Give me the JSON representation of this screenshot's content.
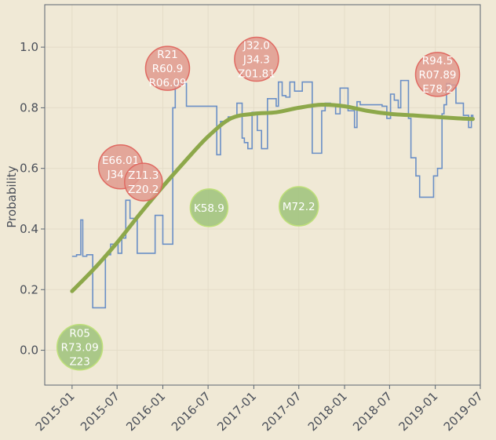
{
  "chart_data": {
    "type": "line",
    "title": "",
    "xlabel": "",
    "ylabel": "Probability",
    "xlim": [
      "2014-09-13",
      "2019-07-01"
    ],
    "ylim": [
      -0.115,
      1.14
    ],
    "grid": true,
    "legend": "none",
    "x_ticks": [
      "2015-01",
      "2015-07",
      "2016-01",
      "2016-07",
      "2017-01",
      "2017-07",
      "2018-01",
      "2018-07",
      "2019-01",
      "2019-07"
    ],
    "x_tick_dates": [
      "2015-01-01",
      "2015-07-01",
      "2016-01-01",
      "2016-07-01",
      "2017-01-01",
      "2017-07-01",
      "2018-01-01",
      "2018-07-01",
      "2019-01-01",
      "2019-07-01"
    ],
    "y_ticks": [
      "0.0",
      "0.2",
      "0.4",
      "0.6",
      "0.8",
      "1.0"
    ],
    "y_tick_values": [
      0.0,
      0.2,
      0.4,
      0.6,
      0.8,
      1.0
    ],
    "colors": {
      "background": "#f0e9d6",
      "grid": "#e4dcc8",
      "axis": "#5a6470",
      "step": "#6a8fc6",
      "smooth": "#8da84a",
      "bubble_red_fill": "#e09a8e",
      "bubble_red_stroke": "#e06a62",
      "bubble_green_fill": "#9dc27a",
      "bubble_green_stroke": "#bfe07a"
    },
    "series": [
      {
        "type": "step",
        "points": [
          [
            "2015-01-01",
            0.31
          ],
          [
            "2015-01-19",
            0.315
          ],
          [
            "2015-02-05",
            0.43
          ],
          [
            "2015-02-13",
            0.31
          ],
          [
            "2015-03-01",
            0.315
          ],
          [
            "2015-03-25",
            0.14
          ],
          [
            "2015-05-15",
            0.315
          ],
          [
            "2015-06-05",
            0.35
          ],
          [
            "2015-07-05",
            0.32
          ],
          [
            "2015-07-20",
            0.37
          ],
          [
            "2015-08-05",
            0.495
          ],
          [
            "2015-08-22",
            0.435
          ],
          [
            "2015-09-20",
            0.32
          ],
          [
            "2015-12-01",
            0.445
          ],
          [
            "2016-01-01",
            0.35
          ],
          [
            "2016-02-10",
            0.8
          ],
          [
            "2016-02-20",
            0.88
          ],
          [
            "2016-04-05",
            0.805
          ],
          [
            "2016-08-05",
            0.645
          ],
          [
            "2016-08-20",
            0.755
          ],
          [
            "2016-09-20",
            0.77
          ],
          [
            "2016-10-25",
            0.815
          ],
          [
            "2016-11-15",
            0.7
          ],
          [
            "2016-11-24",
            0.685
          ],
          [
            "2016-12-08",
            0.665
          ],
          [
            "2016-12-25",
            0.785
          ],
          [
            "2017-01-15",
            0.725
          ],
          [
            "2017-02-01",
            0.665
          ],
          [
            "2017-02-25",
            0.83
          ],
          [
            "2017-04-01",
            0.805
          ],
          [
            "2017-04-10",
            0.885
          ],
          [
            "2017-04-25",
            0.84
          ],
          [
            "2017-05-10",
            0.835
          ],
          [
            "2017-05-26",
            0.885
          ],
          [
            "2017-06-14",
            0.855
          ],
          [
            "2017-07-15",
            0.885
          ],
          [
            "2017-08-24",
            0.65
          ],
          [
            "2017-10-01",
            0.79
          ],
          [
            "2017-10-15",
            0.815
          ],
          [
            "2017-11-05",
            0.81
          ],
          [
            "2017-11-26",
            0.78
          ],
          [
            "2017-12-14",
            0.865
          ],
          [
            "2018-01-15",
            0.79
          ],
          [
            "2018-02-10",
            0.735
          ],
          [
            "2018-02-20",
            0.82
          ],
          [
            "2018-03-05",
            0.81
          ],
          [
            "2018-06-01",
            0.805
          ],
          [
            "2018-06-20",
            0.765
          ],
          [
            "2018-07-05",
            0.845
          ],
          [
            "2018-07-20",
            0.825
          ],
          [
            "2018-08-05",
            0.8
          ],
          [
            "2018-08-15",
            0.89
          ],
          [
            "2018-09-15",
            0.765
          ],
          [
            "2018-09-25",
            0.635
          ],
          [
            "2018-10-15",
            0.575
          ],
          [
            "2018-10-30",
            0.505
          ],
          [
            "2018-12-25",
            0.575
          ],
          [
            "2019-01-10",
            0.6
          ],
          [
            "2019-01-28",
            0.78
          ],
          [
            "2019-02-05",
            0.81
          ],
          [
            "2019-02-15",
            0.88
          ],
          [
            "2019-03-01",
            0.875
          ],
          [
            "2019-03-25",
            0.815
          ],
          [
            "2019-04-24",
            0.775
          ],
          [
            "2019-05-15",
            0.735
          ],
          [
            "2019-05-26",
            0.775
          ],
          [
            "2019-06-01",
            0.765
          ]
        ]
      },
      {
        "type": "smooth",
        "points": [
          [
            "2015-01-01",
            0.195
          ],
          [
            "2015-04-01",
            0.27
          ],
          [
            "2015-07-01",
            0.355
          ],
          [
            "2015-10-01",
            0.45
          ],
          [
            "2016-01-01",
            0.54
          ],
          [
            "2016-04-01",
            0.625
          ],
          [
            "2016-07-01",
            0.705
          ],
          [
            "2016-10-01",
            0.765
          ],
          [
            "2017-01-01",
            0.78
          ],
          [
            "2017-04-01",
            0.785
          ],
          [
            "2017-07-01",
            0.8
          ],
          [
            "2017-10-01",
            0.81
          ],
          [
            "2018-01-01",
            0.805
          ],
          [
            "2018-04-01",
            0.79
          ],
          [
            "2018-07-01",
            0.78
          ],
          [
            "2018-10-01",
            0.775
          ],
          [
            "2019-01-01",
            0.77
          ],
          [
            "2019-04-01",
            0.765
          ],
          [
            "2019-06-01",
            0.763
          ]
        ]
      }
    ],
    "annotations": [
      {
        "x": "2016-01-20",
        "y": 0.93,
        "r": 28,
        "color": "red",
        "lines": [
          "R21",
          "R60.9",
          "R06.09"
        ]
      },
      {
        "x": "2017-01-12",
        "y": 0.96,
        "r": 28,
        "color": "red",
        "lines": [
          "J32.0",
          "J34.3",
          "Z01.81"
        ]
      },
      {
        "x": "2019-01-10",
        "y": 0.91,
        "r": 28,
        "color": "red",
        "lines": [
          "R94.5",
          "R07.89",
          "E78.2"
        ]
      },
      {
        "x": "2015-07-15",
        "y": 0.605,
        "r": 28,
        "color": "red",
        "lines": [
          "E66.01",
          "J34.1"
        ]
      },
      {
        "x": "2015-10-15",
        "y": 0.555,
        "r": 24,
        "color": "red",
        "lines": [
          "Z11.3",
          "Z20.2"
        ]
      },
      {
        "x": "2016-07-05",
        "y": 0.47,
        "r": 24,
        "color": "green",
        "lines": [
          "K58.9"
        ]
      },
      {
        "x": "2017-07-01",
        "y": 0.475,
        "r": 25,
        "color": "green",
        "lines": [
          "M72.2"
        ]
      },
      {
        "x": "2015-02-01",
        "y": 0.01,
        "r": 29,
        "color": "green",
        "lines": [
          "R05",
          "R73.09",
          "Z23"
        ]
      }
    ]
  }
}
